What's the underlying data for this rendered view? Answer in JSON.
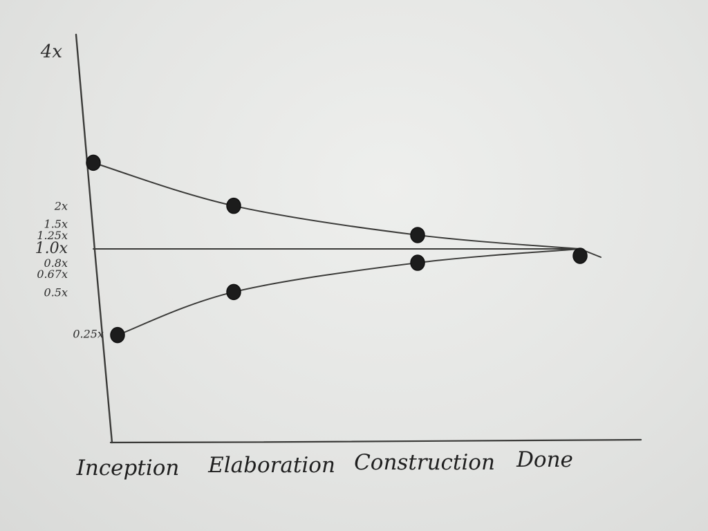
{
  "chart_data": {
    "type": "line",
    "title": "",
    "xlabel": "",
    "ylabel": "",
    "categories": [
      "Inception",
      "Elaboration",
      "Construction",
      "Done"
    ],
    "y_tick_labels": [
      "4x",
      "2x",
      "1.5x",
      "1.25x",
      "1.0x",
      "0.8x",
      "0.67x",
      "0.5x",
      "0.25x"
    ],
    "y_tick_values": [
      4,
      2,
      1.5,
      1.25,
      1.0,
      0.8,
      0.67,
      0.5,
      0.25
    ],
    "y_scale": "log",
    "ylim": [
      0.2,
      4.3
    ],
    "grid": false,
    "legend": "none",
    "series": [
      {
        "values": [
          4,
          2,
          1.25,
          1.0
        ]
      },
      {
        "values": [
          1.0,
          1.0,
          1.0,
          1.0
        ]
      },
      {
        "values": [
          0.25,
          0.5,
          0.8,
          1.0
        ]
      }
    ],
    "colors": {
      "ink": "#3a3a38",
      "marker": "#1c1c1c"
    }
  }
}
